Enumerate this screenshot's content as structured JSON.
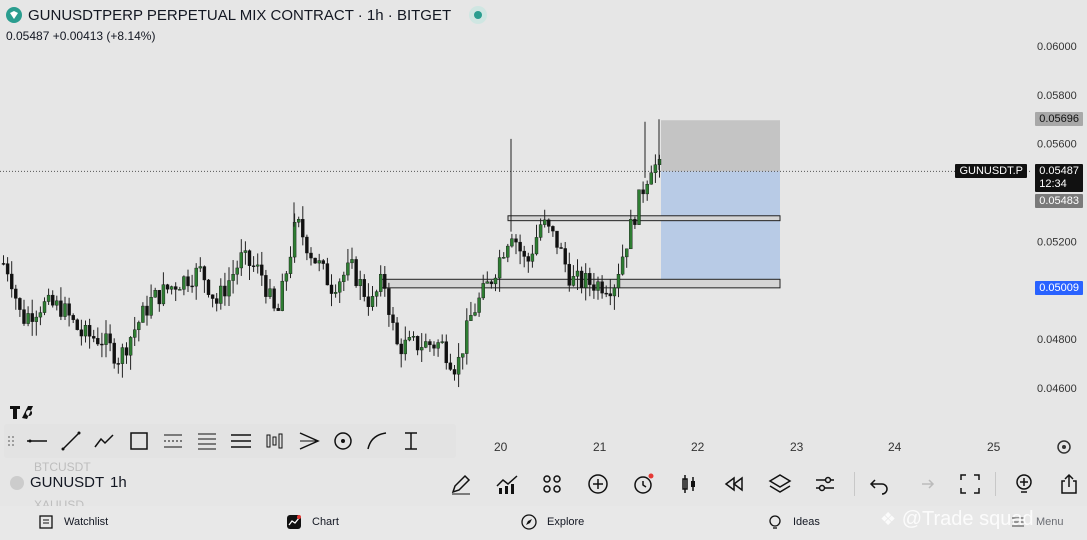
{
  "header": {
    "title": "GUNUSDTPERP PERPETUAL MIX CONTRACT · 1h · BITGET",
    "price_line": "0.05487  +0.00413 (+8.14%)"
  },
  "price_axis": {
    "ticks": [
      "0.06000",
      "0.05800",
      "0.05600",
      "0.05200",
      "0.04800",
      "0.04600"
    ],
    "top_tag": "0.05696",
    "symbol_tag": "GUNUSDT.P",
    "current_price": "0.05487",
    "countdown": "12:34",
    "lower_tag": "0.05483",
    "blue_tag": "0.05009"
  },
  "time_axis": {
    "labels": [
      "20",
      "21",
      "22",
      "23",
      "24",
      "25"
    ]
  },
  "chart_data": {
    "type": "candlestick",
    "y_range": [
      0.0455,
      0.0612
    ],
    "current_price": 0.05487,
    "position_tool": {
      "entry": 0.05487,
      "stop_top": 0.05696,
      "target_bottom": 0.05009
    },
    "zones": [
      {
        "top": 0.05305,
        "bottom": 0.05285
      },
      {
        "top": 0.05045,
        "bottom": 0.0501
      }
    ]
  },
  "bottom_bar": {
    "symbol": "GUNUSDT",
    "ghost_symbol_top": "BTCUSDT",
    "ghost_symbol_bottom": "XAUUSD",
    "timeframe": "1h"
  },
  "nav": {
    "watchlist": "Watchlist",
    "chart": "Chart",
    "explore": "Explore",
    "ideas": "Ideas",
    "menu": "Menu"
  },
  "watermark": "@Trade squad",
  "colors": {
    "bull": "#2e7d32",
    "bear": "#111111",
    "background": "#e6e6e6",
    "blue_tag": "#2962ff",
    "stop_zone": "#bdbdbd",
    "target_zone": "#b5c9e6"
  }
}
